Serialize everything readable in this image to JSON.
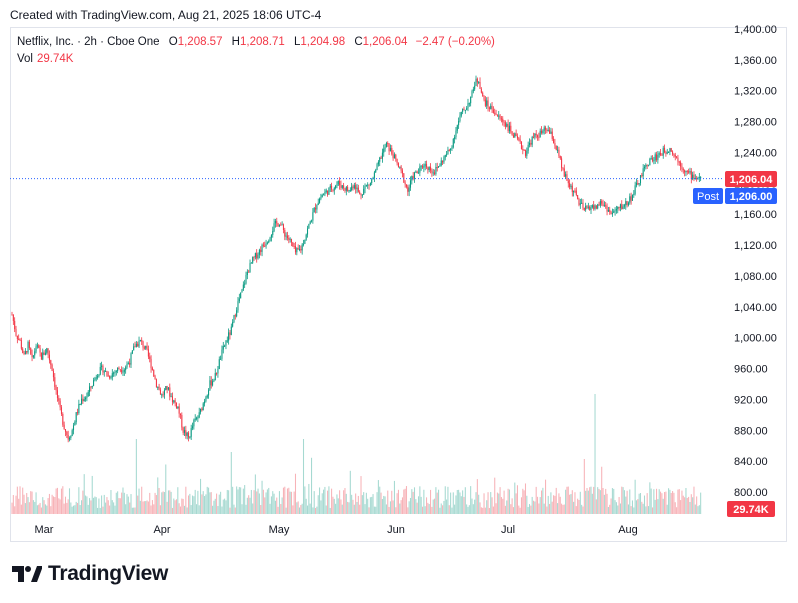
{
  "credit": "Created with TradingView.com, Aug 21, 2025 18:06 UTC-4",
  "legend": {
    "symbol": "Netflix, Inc. · 2h · Cboe One",
    "o_label": "O",
    "o": "1,208.57",
    "h_label": "H",
    "h": "1,208.71",
    "l_label": "L",
    "l": "1,204.98",
    "c_label": "C",
    "c": "1,206.04",
    "change": "−2.47 (−0.20%)",
    "vol_label": "Vol",
    "vol": "29.74K"
  },
  "badges": {
    "last_price": "1,206.04",
    "post_label": "Post",
    "post_price": "1,206.00",
    "volume": "29.74K"
  },
  "brand": "TradingView",
  "colors": {
    "up": "#089981",
    "down": "#f23645",
    "vol_up": "#a6d9d1",
    "vol_down": "#f7b3b8",
    "post": "#2962ff"
  },
  "chart_data": {
    "type": "candlestick",
    "y_ticks": [
      "800.00",
      "840.00",
      "880.00",
      "920.00",
      "960.00",
      "1,000.00",
      "1,040.00",
      "1,080.00",
      "1,120.00",
      "1,160.00",
      "1,200.00",
      "1,240.00",
      "1,280.00",
      "1,320.00",
      "1,360.00",
      "1,400.00"
    ],
    "x_ticks": [
      "Mar",
      "Apr",
      "May",
      "Jun",
      "Jul",
      "Aug"
    ],
    "ylim": [
      800,
      1400
    ],
    "last_price_line": 1206.04,
    "price_path": [
      [
        0,
        1030
      ],
      [
        3,
        1005
      ],
      [
        6,
        995
      ],
      [
        9,
        975
      ],
      [
        12,
        990
      ],
      [
        15,
        970
      ],
      [
        18,
        990
      ],
      [
        22,
        975
      ],
      [
        26,
        985
      ],
      [
        30,
        960
      ],
      [
        33,
        930
      ],
      [
        36,
        905
      ],
      [
        39,
        885
      ],
      [
        42,
        870
      ],
      [
        45,
        880
      ],
      [
        48,
        900
      ],
      [
        52,
        920
      ],
      [
        56,
        925
      ],
      [
        60,
        940
      ],
      [
        64,
        955
      ],
      [
        68,
        960
      ],
      [
        72,
        950
      ],
      [
        76,
        955
      ],
      [
        80,
        960
      ],
      [
        84,
        960
      ],
      [
        88,
        970
      ],
      [
        92,
        990
      ],
      [
        96,
        995
      ],
      [
        100,
        985
      ],
      [
        104,
        965
      ],
      [
        108,
        940
      ],
      [
        112,
        925
      ],
      [
        116,
        935
      ],
      [
        120,
        920
      ],
      [
        124,
        910
      ],
      [
        128,
        880
      ],
      [
        132,
        870
      ],
      [
        136,
        890
      ],
      [
        140,
        900
      ],
      [
        144,
        920
      ],
      [
        148,
        940
      ],
      [
        152,
        950
      ],
      [
        156,
        975
      ],
      [
        160,
        995
      ],
      [
        164,
        1010
      ],
      [
        168,
        1040
      ],
      [
        172,
        1060
      ],
      [
        176,
        1085
      ],
      [
        180,
        1100
      ],
      [
        184,
        1110
      ],
      [
        188,
        1120
      ],
      [
        192,
        1130
      ],
      [
        196,
        1145
      ],
      [
        200,
        1150
      ],
      [
        204,
        1135
      ],
      [
        208,
        1125
      ],
      [
        212,
        1110
      ],
      [
        216,
        1115
      ],
      [
        220,
        1135
      ],
      [
        224,
        1155
      ],
      [
        228,
        1175
      ],
      [
        232,
        1185
      ],
      [
        236,
        1190
      ],
      [
        240,
        1195
      ],
      [
        244,
        1200
      ],
      [
        248,
        1195
      ],
      [
        252,
        1190
      ],
      [
        256,
        1200
      ],
      [
        260,
        1185
      ],
      [
        264,
        1195
      ],
      [
        268,
        1200
      ],
      [
        272,
        1215
      ],
      [
        276,
        1235
      ],
      [
        280,
        1250
      ],
      [
        284,
        1240
      ],
      [
        288,
        1225
      ],
      [
        292,
        1210
      ],
      [
        296,
        1190
      ],
      [
        300,
        1210
      ],
      [
        304,
        1215
      ],
      [
        308,
        1225
      ],
      [
        312,
        1220
      ],
      [
        316,
        1215
      ],
      [
        320,
        1225
      ],
      [
        324,
        1235
      ],
      [
        328,
        1245
      ],
      [
        332,
        1270
      ],
      [
        336,
        1290
      ],
      [
        340,
        1300
      ],
      [
        344,
        1315
      ],
      [
        346,
        1330
      ],
      [
        349,
        1335
      ],
      [
        352,
        1310
      ],
      [
        356,
        1300
      ],
      [
        360,
        1295
      ],
      [
        364,
        1285
      ],
      [
        368,
        1280
      ],
      [
        372,
        1270
      ],
      [
        376,
        1260
      ],
      [
        380,
        1250
      ],
      [
        384,
        1240
      ],
      [
        388,
        1255
      ],
      [
        392,
        1262
      ],
      [
        396,
        1265
      ],
      [
        400,
        1270
      ],
      [
        404,
        1260
      ],
      [
        408,
        1240
      ],
      [
        412,
        1215
      ],
      [
        416,
        1200
      ],
      [
        420,
        1190
      ],
      [
        424,
        1175
      ],
      [
        428,
        1165
      ],
      [
        432,
        1170
      ],
      [
        436,
        1168
      ],
      [
        440,
        1175
      ],
      [
        444,
        1170
      ],
      [
        448,
        1160
      ],
      [
        452,
        1165
      ],
      [
        456,
        1170
      ],
      [
        460,
        1175
      ],
      [
        464,
        1185
      ],
      [
        468,
        1200
      ],
      [
        472,
        1215
      ],
      [
        476,
        1228
      ],
      [
        480,
        1232
      ],
      [
        484,
        1238
      ],
      [
        488,
        1242
      ],
      [
        492,
        1246
      ],
      [
        496,
        1235
      ],
      [
        500,
        1225
      ],
      [
        504,
        1215
      ],
      [
        508,
        1210
      ],
      [
        512,
        1208
      ],
      [
        515,
        1206
      ]
    ],
    "n_bars": 516
  }
}
